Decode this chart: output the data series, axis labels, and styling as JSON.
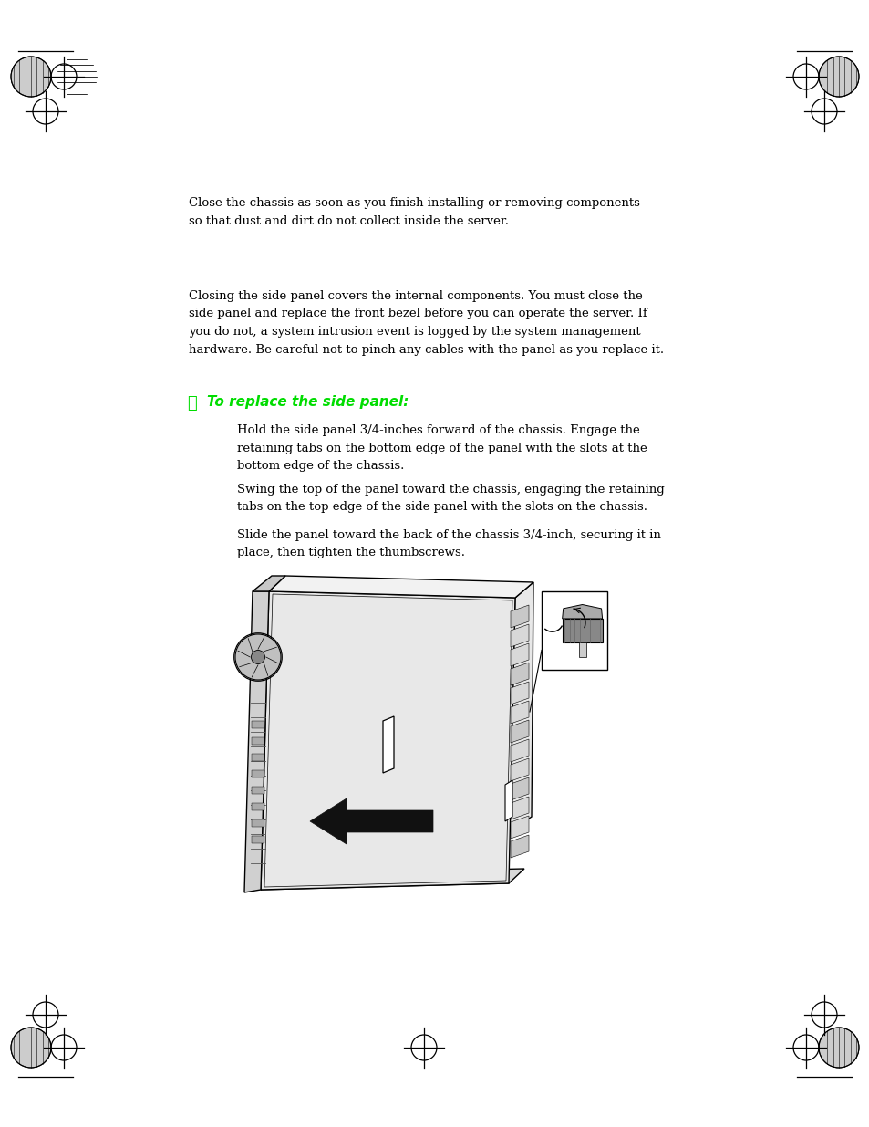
{
  "page_bg": "#ffffff",
  "figsize": [
    9.54,
    12.35
  ],
  "dpi": 100,
  "paragraph1": "Close the chassis as soon as you finish installing or removing components\nso that dust and dirt do not collect inside the server.",
  "paragraph2": "Closing the side panel covers the internal components. You must close the\nside panel and replace the front bezel before you can operate the server. If\nyou do not, a system intrusion event is logged by the system management\nhardware. Be careful not to pinch any cables with the panel as you replace it.",
  "heading_text": "To replace the side panel:",
  "step1": "Hold the side panel 3/4-inches forward of the chassis. Engage the\nretaining tabs on the bottom edge of the panel with the slots at the\nbottom edge of the chassis.",
  "step2": "Swing the top of the panel toward the chassis, engaging the retaining\ntabs on the top edge of the side panel with the slots on the chassis.",
  "step3": "Slide the panel toward the back of the chassis 3/4-inch, securing it in\nplace, then tighten the thumbscrews.",
  "green_color": "#00dd00",
  "black": "#000000"
}
